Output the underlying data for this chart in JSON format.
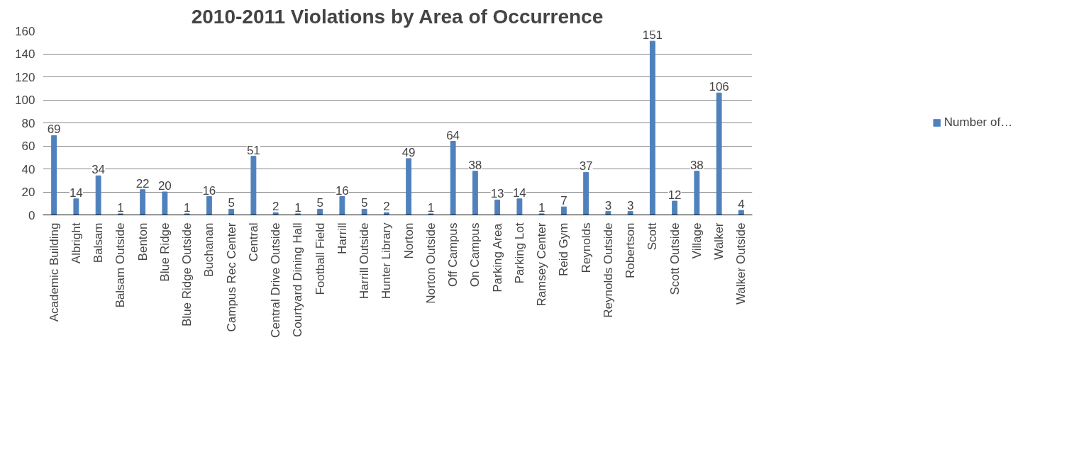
{
  "chart_data": {
    "type": "bar",
    "title": "2010-2011 Violations by Area of Occurrence",
    "categories": [
      "Academic Building",
      "Albright",
      "Balsam",
      "Balsam Outside",
      "Benton",
      "Blue Ridge",
      "Blue Ridge Outside",
      "Buchanan",
      "Campus Rec Center",
      "Central",
      "Central Drive Outside",
      "Courtyard Dining Hall",
      "Football Field",
      "Harrill",
      "Harrill Outside",
      "Hunter Library",
      "Norton",
      "Norton Outside",
      "Off Campus",
      "On Campus",
      "Parking Area",
      "Parking Lot",
      "Ramsey Center",
      "Reid Gym",
      "Reynolds",
      "Reynolds Outside",
      "Robertson",
      "Scott",
      "Scott Outside",
      "Village",
      "Walker",
      "Walker Outside"
    ],
    "series": [
      {
        "name": "Number of…",
        "color": "#4f81bd",
        "values": [
          69,
          14,
          34,
          1,
          22,
          20,
          1,
          16,
          5,
          51,
          2,
          1,
          5,
          16,
          5,
          2,
          49,
          1,
          64,
          38,
          13,
          14,
          1,
          7,
          37,
          3,
          3,
          151,
          12,
          38,
          106,
          4
        ]
      }
    ],
    "ylim": [
      0,
      160
    ],
    "yticks": [
      0,
      20,
      40,
      60,
      80,
      100,
      120,
      140,
      160
    ],
    "grid": "y",
    "legend": "right",
    "data_labels": true
  }
}
